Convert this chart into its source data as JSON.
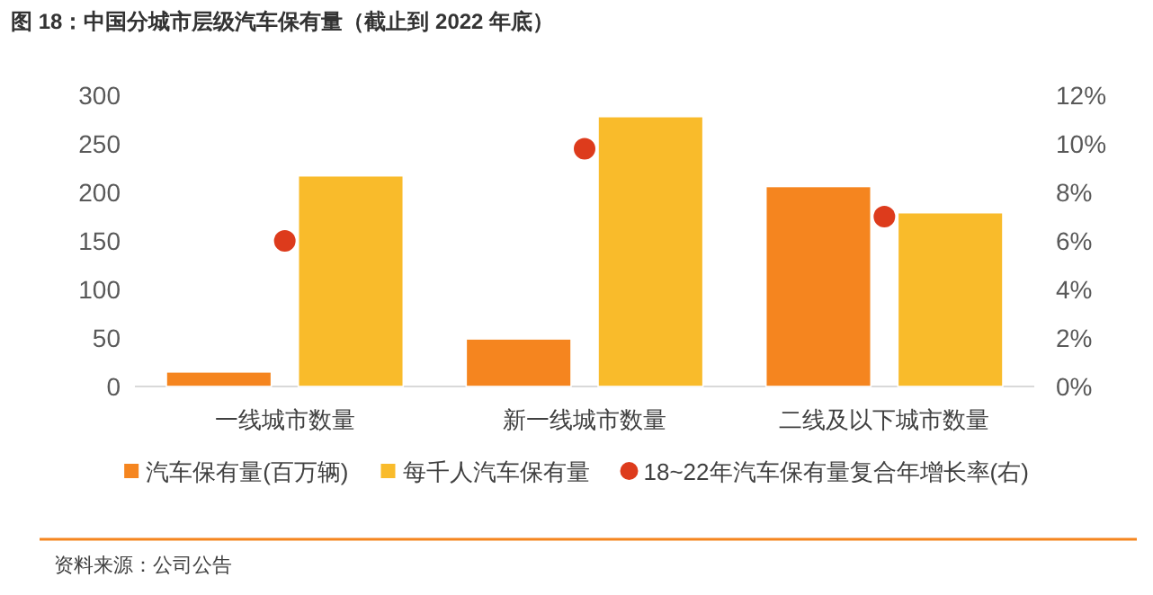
{
  "chart_data": {
    "type": "bar",
    "title": "图 18：中国分城市层级汽车保有量（截止到 2022 年底）",
    "categories": [
      "一线城市数量",
      "新一线城市数量",
      "二线及以下城市数量"
    ],
    "series": [
      {
        "name": "汽车保有量(百万辆)",
        "color": "#f5851f",
        "values": [
          15,
          49,
          206
        ]
      },
      {
        "name": "每千人汽车保有量",
        "color": "#f9bb2b",
        "values": [
          217,
          278,
          179
        ]
      },
      {
        "name": "18~22年汽车保有量复合年增长率(右)",
        "type": "scatter",
        "axis": "y2",
        "color": "#dd3b1c",
        "values": [
          6.0,
          9.8,
          7.0
        ]
      }
    ],
    "ylim": [
      0,
      300
    ],
    "yticks": [
      0,
      50,
      100,
      150,
      200,
      250,
      300
    ],
    "y2lim": [
      0,
      12
    ],
    "y2ticks": [
      {
        "value": 0,
        "label": "0%"
      },
      {
        "value": 2,
        "label": "2%"
      },
      {
        "value": 4,
        "label": "4%"
      },
      {
        "value": 6,
        "label": "6%"
      },
      {
        "value": 8,
        "label": "8%"
      },
      {
        "value": 10,
        "label": "10%"
      },
      {
        "value": 12,
        "label": "12%"
      }
    ],
    "legend": "bottom",
    "marker": "circle",
    "annotations": [
      "资料来源：公司公告"
    ]
  }
}
